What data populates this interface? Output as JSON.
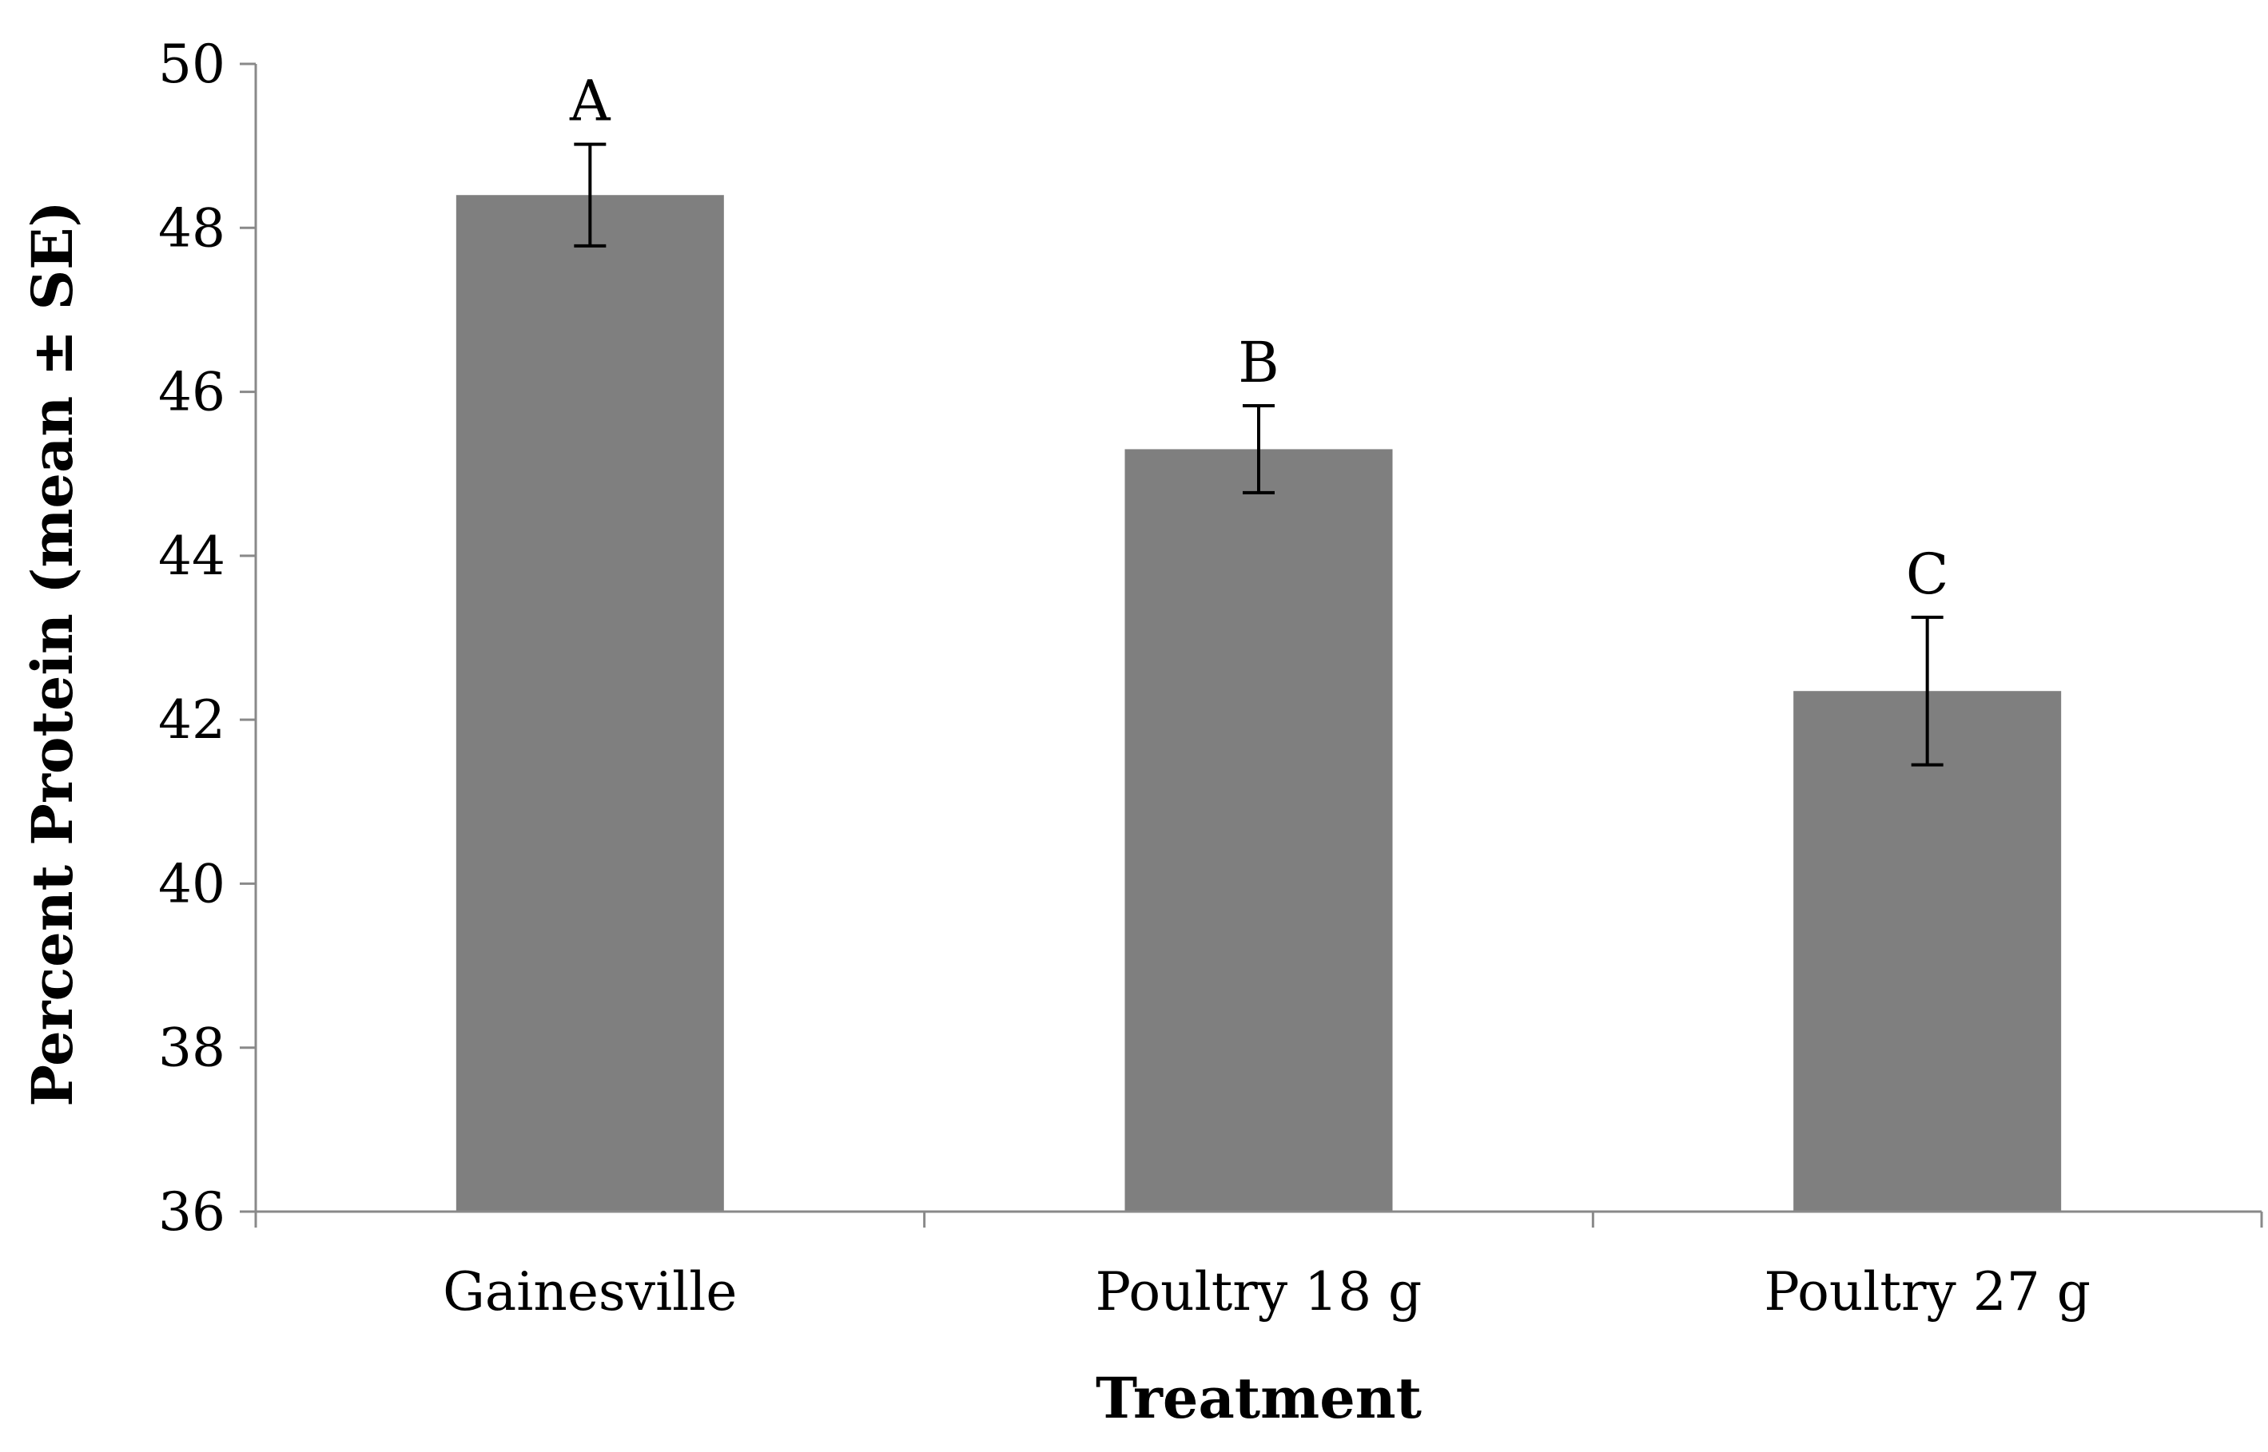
{
  "chart_data": {
    "type": "bar",
    "title": "",
    "xlabel": "Treatment",
    "ylabel": "Percent Protein (mean ± SE)",
    "ylim": [
      36,
      50
    ],
    "yticks": [
      36,
      38,
      40,
      42,
      44,
      46,
      48,
      50
    ],
    "categories": [
      "Gainesville",
      "Poultry 18 g",
      "Poultry 27 g"
    ],
    "values": [
      48.4,
      45.3,
      42.35
    ],
    "errors": [
      0.62,
      0.53,
      0.9
    ],
    "significance": [
      "A",
      "B",
      "C"
    ],
    "bar_color": "#7f7f7f",
    "grid": false,
    "legend": "none"
  }
}
